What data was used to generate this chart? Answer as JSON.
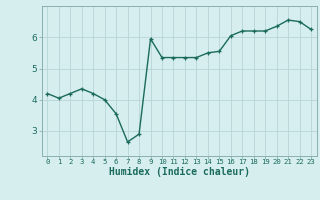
{
  "x": [
    0,
    1,
    2,
    3,
    4,
    5,
    6,
    7,
    8,
    9,
    10,
    11,
    12,
    13,
    14,
    15,
    16,
    17,
    18,
    19,
    20,
    21,
    22,
    23
  ],
  "y": [
    4.2,
    4.05,
    4.2,
    4.35,
    4.2,
    4.0,
    3.55,
    2.65,
    2.9,
    5.95,
    5.35,
    5.35,
    5.35,
    5.35,
    5.5,
    5.55,
    6.05,
    6.2,
    6.2,
    6.2,
    6.35,
    6.55,
    6.5,
    6.25
  ],
  "line_color": "#1a6b5a",
  "marker": "+",
  "marker_size": 3,
  "bg_color": "#d6eeee",
  "grid_color": "#b8d4d4",
  "xlabel": "Humidex (Indice chaleur)",
  "ylim": [
    2.2,
    7.0
  ],
  "xlim": [
    -0.5,
    23.5
  ],
  "yticks": [
    3,
    4,
    5,
    6
  ],
  "xticks": [
    0,
    1,
    2,
    3,
    4,
    5,
    6,
    7,
    8,
    9,
    10,
    11,
    12,
    13,
    14,
    15,
    16,
    17,
    18,
    19,
    20,
    21,
    22,
    23
  ],
  "tick_color": "#1a6b5a",
  "font_size_xlabel": 7,
  "font_size_xticks": 5.2,
  "font_size_yticks": 6.5,
  "line_width": 1.0,
  "markeredgewidth": 0.9
}
